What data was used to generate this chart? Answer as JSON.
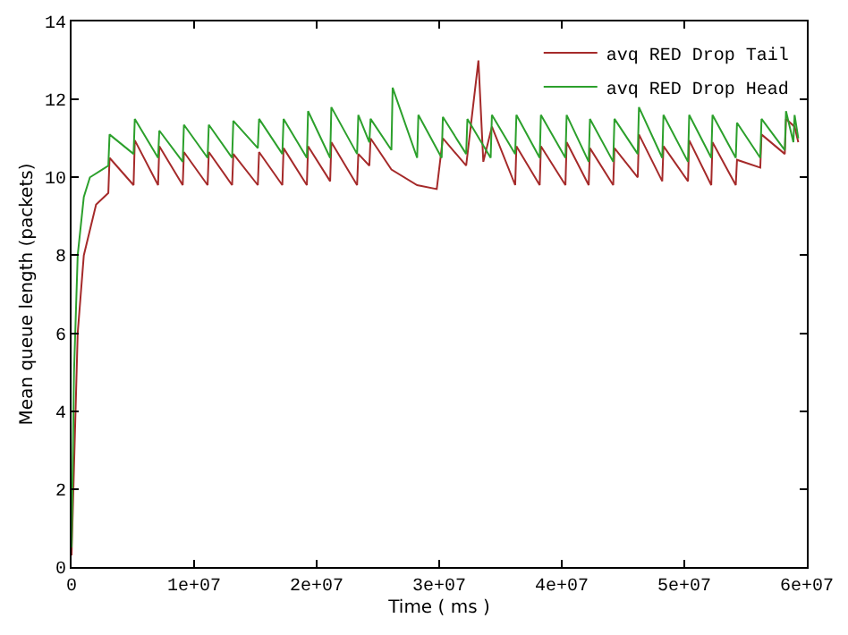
{
  "chart_data": {
    "type": "line",
    "xlabel": "Time ( ms )",
    "ylabel": "Mean queue length (packets)",
    "xlim": [
      0,
      60000000
    ],
    "ylim": [
      0,
      14
    ],
    "xticks": [
      0,
      {
        "value": 10000000,
        "label": "1e+07"
      },
      {
        "value": 20000000,
        "label": "2e+07"
      },
      {
        "value": 30000000,
        "label": "3e+07"
      },
      {
        "value": 40000000,
        "label": "4e+07"
      },
      {
        "value": 50000000,
        "label": "5e+07"
      },
      {
        "value": 60000000,
        "label": "6e+07"
      }
    ],
    "yticks": [
      0,
      2,
      4,
      6,
      8,
      10,
      12,
      14
    ],
    "legend": "top right",
    "marker": "none",
    "line_style": "solid",
    "series": [
      {
        "name": "avq RED Drop Tail",
        "color": "#a52a2a",
        "x": [
          0,
          500000,
          1000000,
          2000000,
          3000000,
          3100000,
          5060000,
          5160000,
          7060000,
          7160000,
          9070000,
          9170000,
          11100000,
          11200000,
          13100000,
          13200000,
          15200000,
          15300000,
          17200000,
          17300000,
          19200000,
          19300000,
          21100000,
          21200000,
          23300000,
          23400000,
          24300000,
          24400000,
          26100000,
          28200000,
          29800000,
          30300000,
          32200000,
          33200000,
          33600000,
          34300000,
          36200000,
          36300000,
          38200000,
          38300000,
          40300000,
          40400000,
          42200000,
          42300000,
          44200000,
          44300000,
          46200000,
          46300000,
          48200000,
          48300000,
          50300000,
          50400000,
          52200000,
          52300000,
          54200000,
          54300000,
          56200000,
          56300000,
          58200000,
          58300000,
          59000000,
          59300000
        ],
        "values": [
          0.3,
          6,
          8,
          9.3,
          9.6,
          10.5,
          9.8,
          10.95,
          9.8,
          10.8,
          9.8,
          10.65,
          9.8,
          10.65,
          9.8,
          10.6,
          9.8,
          10.65,
          9.8,
          10.75,
          9.8,
          10.8,
          9.9,
          10.9,
          9.8,
          10.6,
          10.3,
          11.0,
          10.2,
          9.8,
          9.7,
          11.0,
          10.3,
          13.0,
          10.4,
          11.3,
          9.8,
          10.8,
          9.8,
          10.8,
          9.8,
          10.9,
          9.8,
          10.75,
          9.8,
          10.75,
          10.0,
          11.1,
          9.9,
          10.8,
          9.9,
          10.95,
          9.8,
          10.9,
          9.8,
          10.45,
          10.25,
          11.1,
          10.6,
          11.5,
          11.3,
          10.9
        ]
      },
      {
        "name": "avq RED Drop Head",
        "color": "#2ca02c",
        "x": [
          0,
          200000,
          500000,
          1000000,
          1500000,
          2500000,
          3000000,
          3100000,
          5060000,
          5160000,
          7060000,
          7160000,
          9070000,
          9170000,
          11100000,
          11200000,
          13100000,
          13200000,
          15200000,
          15300000,
          17200000,
          17300000,
          19200000,
          19300000,
          21100000,
          21200000,
          23300000,
          23400000,
          24300000,
          24400000,
          26100000,
          26200000,
          28200000,
          28300000,
          30200000,
          30300000,
          32200000,
          32300000,
          34200000,
          34300000,
          36200000,
          36300000,
          38200000,
          38300000,
          40300000,
          40400000,
          42200000,
          42300000,
          44200000,
          44300000,
          46200000,
          46300000,
          48200000,
          48300000,
          50300000,
          50400000,
          52200000,
          52300000,
          54200000,
          54300000,
          56200000,
          56300000,
          58200000,
          58300000,
          58900000,
          59000000,
          59300000
        ],
        "values": [
          0.5,
          5,
          8,
          9.5,
          10.0,
          10.2,
          10.3,
          11.1,
          10.6,
          11.5,
          10.5,
          11.2,
          10.4,
          11.35,
          10.5,
          11.35,
          10.5,
          11.45,
          10.75,
          11.5,
          10.6,
          11.5,
          10.5,
          11.7,
          10.5,
          11.8,
          10.6,
          11.6,
          10.9,
          11.5,
          10.7,
          12.3,
          10.5,
          11.6,
          10.5,
          11.55,
          10.6,
          11.5,
          10.5,
          11.6,
          10.6,
          11.6,
          10.5,
          11.6,
          10.5,
          11.6,
          10.4,
          11.5,
          10.4,
          11.5,
          10.6,
          11.8,
          10.5,
          11.6,
          10.4,
          11.6,
          10.5,
          11.6,
          10.5,
          11.4,
          10.5,
          11.5,
          10.7,
          11.7,
          10.9,
          11.6,
          11.0
        ]
      }
    ]
  }
}
